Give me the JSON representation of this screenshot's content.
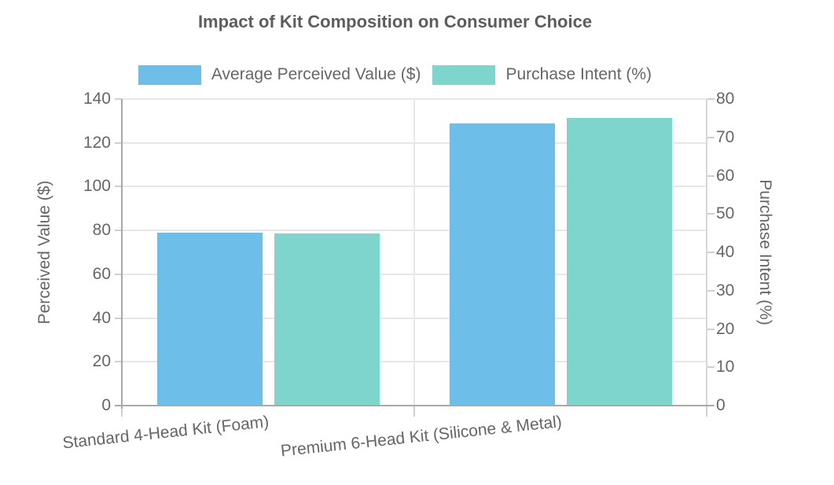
{
  "title": "Impact of Kit Composition on Consumer Choice",
  "chart_data": {
    "type": "bar",
    "title": "Impact of Kit Composition on Consumer Choice",
    "categories": [
      "Standard 4-Head Kit (Foam)",
      "Premium 6-Head Kit (Silicone & Metal)"
    ],
    "series": [
      {
        "name": "Average Perceived Value ($)",
        "axis": "left",
        "color": "#6ebeea",
        "values": [
          79,
          129
        ]
      },
      {
        "name": "Purchase Intent (%)",
        "axis": "right",
        "color": "#7ed5ce",
        "values": [
          45,
          75
        ]
      }
    ],
    "left_axis": {
      "label": "Perceived Value ($)",
      "min": 0,
      "max": 140,
      "tick_step": 20,
      "ticks": [
        0,
        20,
        40,
        60,
        80,
        100,
        120,
        140
      ]
    },
    "right_axis": {
      "label": "Purchase Intent (%)",
      "min": 0,
      "max": 80,
      "tick_step": 10,
      "ticks": [
        0,
        10,
        20,
        30,
        40,
        50,
        60,
        70,
        80
      ]
    },
    "grid": true,
    "legend_position": "top",
    "background": "#ffffff"
  }
}
